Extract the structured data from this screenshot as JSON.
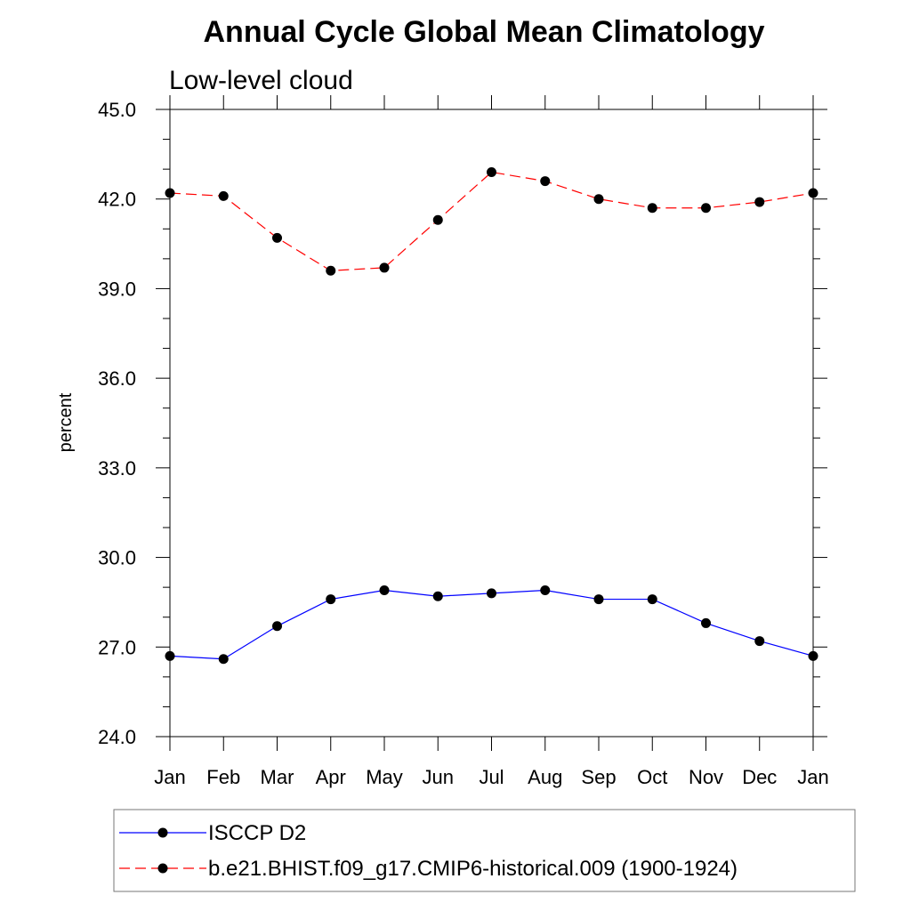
{
  "chart_data": {
    "type": "line",
    "title": "Annual Cycle Global Mean Climatology",
    "subtitle": "Low-level cloud",
    "ylabel": "percent",
    "xlabel": "",
    "ylim": [
      24.0,
      45.0
    ],
    "yticks": [
      "24.0",
      "27.0",
      "30.0",
      "33.0",
      "36.0",
      "39.0",
      "42.0",
      "45.0"
    ],
    "categories": [
      "Jan",
      "Feb",
      "Mar",
      "Apr",
      "May",
      "Jun",
      "Jul",
      "Aug",
      "Sep",
      "Oct",
      "Nov",
      "Dec",
      "Jan"
    ],
    "legend_position": "bottom",
    "series": [
      {
        "name": "ISCCP D2",
        "color": "#0000ff",
        "line_style": "solid",
        "marker": "filled-circle",
        "values": [
          26.7,
          26.6,
          27.7,
          28.6,
          28.9,
          28.7,
          28.8,
          28.9,
          28.6,
          28.6,
          27.8,
          27.2,
          26.7
        ]
      },
      {
        "name": "b.e21.BHIST.f09_g17.CMIP6-historical.009 (1900-1924)",
        "color": "#ff0000",
        "line_style": "dashed",
        "marker": "filled-circle",
        "values": [
          42.2,
          42.1,
          40.7,
          39.6,
          39.7,
          41.3,
          42.9,
          42.6,
          42.0,
          41.7,
          41.7,
          41.9,
          42.2
        ]
      }
    ]
  }
}
